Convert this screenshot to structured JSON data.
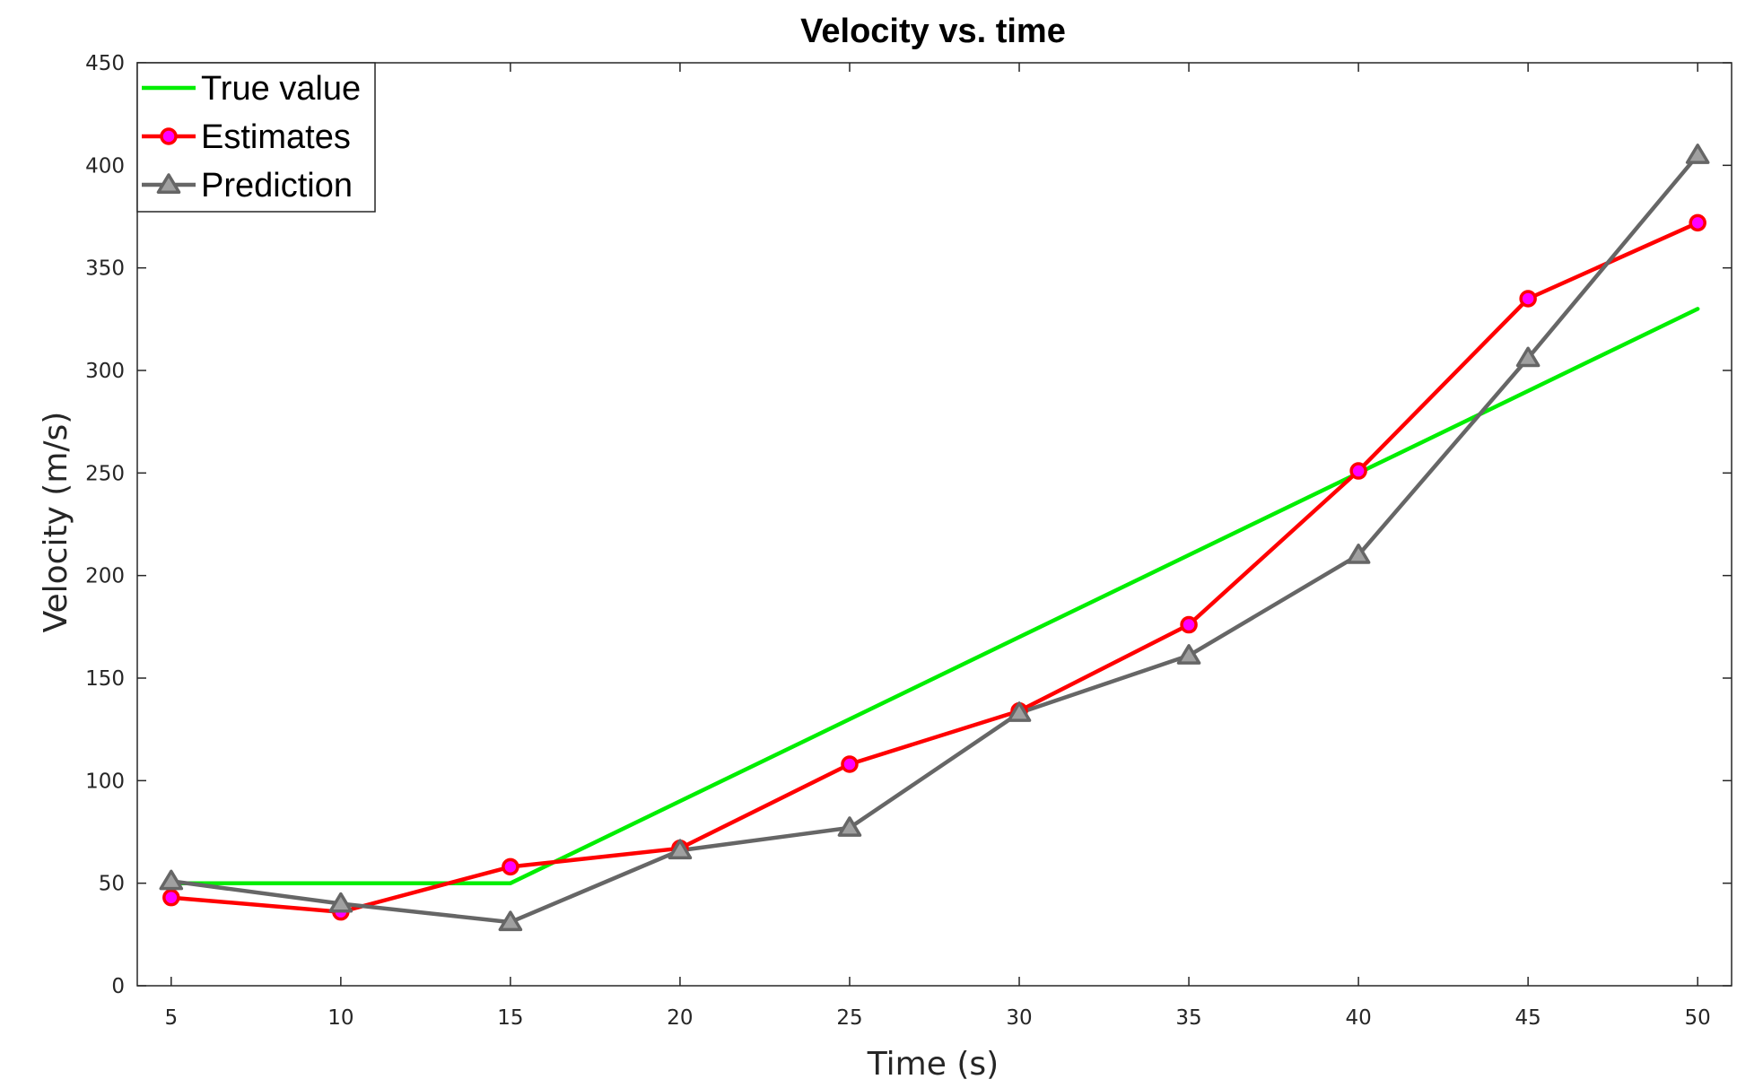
{
  "chart_data": {
    "type": "line",
    "title": "Velocity vs. time",
    "xlabel": "Time (s)",
    "ylabel": "Velocity (m/s)",
    "x": [
      5,
      10,
      15,
      20,
      25,
      30,
      35,
      40,
      45,
      50
    ],
    "xlim": [
      4,
      51
    ],
    "ylim": [
      0,
      450
    ],
    "xticks": [
      5,
      10,
      15,
      20,
      25,
      30,
      35,
      40,
      45,
      50
    ],
    "yticks": [
      0,
      50,
      100,
      150,
      200,
      250,
      300,
      350,
      400,
      450
    ],
    "grid": false,
    "legend_position": "top-left",
    "series": [
      {
        "name": "True value",
        "color": "#00ee00",
        "marker": "none",
        "x": [
          5,
          15,
          50
        ],
        "values": [
          50,
          50,
          330
        ]
      },
      {
        "name": "Estimates",
        "color": "#ff0000",
        "marker_fill": "#ff00ff",
        "marker": "circle",
        "values": [
          43,
          36,
          58,
          67,
          108,
          134,
          176,
          251,
          335,
          372
        ]
      },
      {
        "name": "Prediction",
        "color": "#666666",
        "marker_fill": "#a0a0a0",
        "marker": "triangle",
        "values": [
          51,
          40,
          31,
          66,
          77,
          133,
          161,
          210,
          306,
          405
        ]
      }
    ]
  }
}
